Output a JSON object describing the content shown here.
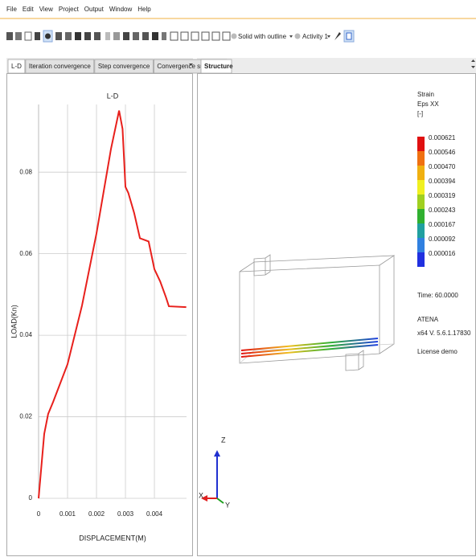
{
  "menu": [
    "File",
    "Edit",
    "View",
    "Project",
    "Output",
    "Window",
    "Help"
  ],
  "toolbar": {
    "render_mode": "Solid with outline",
    "activity": "Activity 1"
  },
  "left_tabs": [
    "L-D",
    "Iteration convergence",
    "Step convergence",
    "Convergence summary"
  ],
  "right_tabs": [
    "Structure"
  ],
  "chart_data": {
    "type": "line",
    "title": "L-D",
    "x_label": "DISPLACEMENT(M)",
    "y_label": "LOAD(Kn)",
    "x": [
      0,
      0.000194,
      0.00033,
      0.0005,
      0.001,
      0.0015,
      0.002,
      0.0025,
      0.00278,
      0.0029,
      0.003,
      0.0031,
      0.0033,
      0.0035,
      0.0038,
      0.004,
      0.0042,
      0.0044,
      0.0045,
      0.0051
    ],
    "values": [
      0,
      0.0158,
      0.0207,
      0.0236,
      0.0329,
      0.0473,
      0.065,
      0.0857,
      0.0951,
      0.0906,
      0.0764,
      0.0749,
      0.07,
      0.0638,
      0.063,
      0.0562,
      0.0532,
      0.0493,
      0.0471,
      0.0469
    ],
    "color": "#e8201c",
    "xlim": [
      0,
      0.00511
    ],
    "ylim": [
      0,
      0.0966
    ],
    "xticks": [
      0,
      0.001,
      0.002,
      0.003,
      0.004
    ],
    "yticks": [
      0,
      0.02,
      0.04,
      0.06,
      0.08
    ],
    "grid": true
  },
  "structure_legend": {
    "title": [
      "Strain",
      "Eps XX",
      "[-]"
    ],
    "labels": [
      "0.000621",
      "0.000546",
      "0.000470",
      "0.000394",
      "0.000319",
      "0.000243",
      "0.000167",
      "0.000092",
      "0.000016"
    ],
    "colors": [
      "#e01010",
      "#f07010",
      "#f0b010",
      "#f0f020",
      "#a0d020",
      "#30b030",
      "#20a0a0",
      "#3080e0",
      "#2030e0"
    ]
  },
  "info": [
    "Time: 60.0000",
    "ATENA",
    "x64 V. 5.6.1.17830",
    "License demo"
  ],
  "axes_triad": [
    "Z",
    "X",
    "Y"
  ]
}
